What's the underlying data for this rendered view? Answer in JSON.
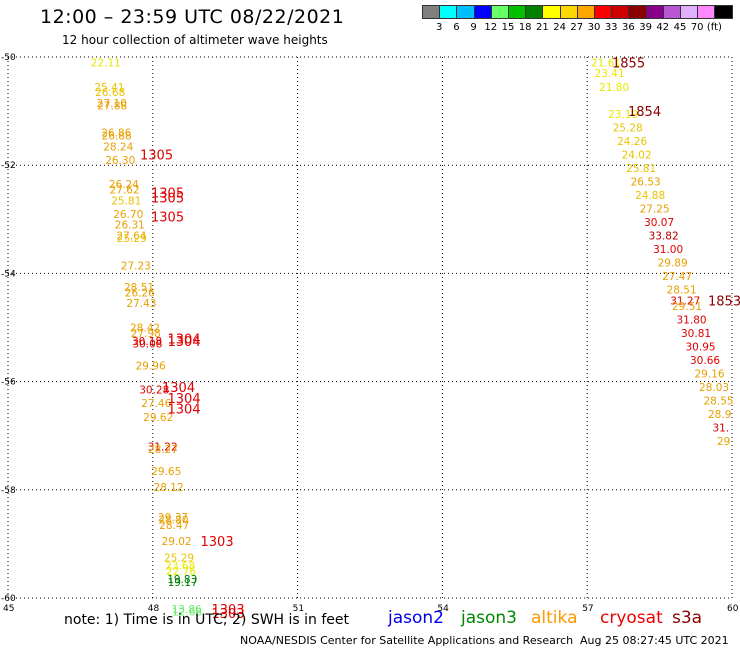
{
  "header": {
    "title": "12:00 – 23:59 UTC 08/22/2021",
    "subtitle": "12 hour collection of altimeter wave heights"
  },
  "colorbar": {
    "colors": [
      "#808080",
      "#00ffff",
      "#00bfff",
      "#0000ff",
      "#66ff66",
      "#00c000",
      "#008000",
      "#ffff00",
      "#ffd700",
      "#ffa500",
      "#ff0000",
      "#cc0000",
      "#8b0000",
      "#8b008b",
      "#ba55d3",
      "#e0b0ff",
      "#ff88ff",
      "#000000"
    ],
    "labels": [
      "3",
      "6",
      "9",
      "12",
      "15",
      "18",
      "21",
      "24",
      "27",
      "30",
      "33",
      "36",
      "39",
      "42",
      "45",
      "70",
      "(ft)"
    ]
  },
  "axes": {
    "y_ticks": [
      "-50",
      "-52",
      "-54",
      "-56",
      "-58",
      "-60"
    ],
    "x_ticks": [
      "45",
      "48",
      "51",
      "54",
      "57",
      "60"
    ]
  },
  "chart_data": {
    "type": "scatter",
    "xlim": [
      45,
      60
    ],
    "ylim": [
      -60,
      -50
    ],
    "grid": true,
    "annotations": [
      {
        "x": 48.0,
        "y": -50.1,
        "text": "22.11",
        "color": "#e8e800"
      },
      {
        "x": 48.0,
        "y": -50.55,
        "text": "25.41",
        "color": "#e8c400"
      },
      {
        "x": 48.0,
        "y": -50.65,
        "text": "26.68",
        "color": "#e8c400"
      },
      {
        "x": 48.0,
        "y": -50.85,
        "text": "27.10",
        "color": "#e8a000"
      },
      {
        "x": 48.0,
        "y": -50.9,
        "text": "27.88",
        "color": "#e8a000"
      },
      {
        "x": 48.0,
        "y": -51.4,
        "text": "26.86",
        "color": "#e8a000"
      },
      {
        "x": 48.0,
        "y": -51.45,
        "text": "26.88",
        "color": "#e8a000"
      },
      {
        "x": 48.0,
        "y": -51.65,
        "text": "28.24",
        "color": "#e8a000"
      },
      {
        "x": 48.0,
        "y": -51.9,
        "text": "26.30",
        "color": "#e8a000"
      },
      {
        "x": 48.0,
        "y": -52.35,
        "text": "26.24",
        "color": "#e8a000"
      },
      {
        "x": 48.0,
        "y": -52.45,
        "text": "27.62",
        "color": "#e8a000"
      },
      {
        "x": 48.0,
        "y": -52.65,
        "text": "25.81",
        "color": "#e8c400"
      },
      {
        "x": 48.0,
        "y": -52.9,
        "text": "26.70",
        "color": "#e8a000"
      },
      {
        "x": 48.0,
        "y": -53.1,
        "text": "26.31",
        "color": "#e8a000"
      },
      {
        "x": 48.0,
        "y": -53.3,
        "text": "27.64",
        "color": "#e8a000"
      },
      {
        "x": 48.0,
        "y": -53.35,
        "text": "25.29",
        "color": "#e8c400"
      },
      {
        "x": 48.0,
        "y": -53.85,
        "text": "27.23",
        "color": "#e8a000"
      },
      {
        "x": 48.0,
        "y": -54.25,
        "text": "28.51",
        "color": "#e8a000"
      },
      {
        "x": 48.0,
        "y": -54.35,
        "text": "26.26",
        "color": "#e8a000"
      },
      {
        "x": 48.0,
        "y": -54.55,
        "text": "27.43",
        "color": "#e8a000"
      },
      {
        "x": 48.0,
        "y": -55.0,
        "text": "28.42",
        "color": "#e8a000"
      },
      {
        "x": 48.0,
        "y": -55.1,
        "text": "27.98",
        "color": "#e8a000"
      },
      {
        "x": 48.0,
        "y": -55.25,
        "text": "30.18",
        "color": "#e00000"
      },
      {
        "x": 48.0,
        "y": -55.3,
        "text": "30.08",
        "color": "#e00000"
      },
      {
        "x": 48.0,
        "y": -55.7,
        "text": "29.96",
        "color": "#e8a000"
      },
      {
        "x": 48.0,
        "y": -56.15,
        "text": "30.28",
        "color": "#e00000"
      },
      {
        "x": 48.0,
        "y": -56.4,
        "text": "27.46",
        "color": "#e8a000"
      },
      {
        "x": 48.0,
        "y": -56.65,
        "text": "29.62",
        "color": "#e8a000"
      },
      {
        "x": 48.0,
        "y": -57.2,
        "text": "31.22",
        "color": "#e00000"
      },
      {
        "x": 48.0,
        "y": -57.25,
        "text": "28.27",
        "color": "#e8a000"
      },
      {
        "x": 48.0,
        "y": -57.65,
        "text": "29.65",
        "color": "#e8a000"
      },
      {
        "x": 48.0,
        "y": -57.95,
        "text": "28.12",
        "color": "#e8a000"
      },
      {
        "x": 48.0,
        "y": -58.5,
        "text": "29.37",
        "color": "#e8a000"
      },
      {
        "x": 48.0,
        "y": -58.55,
        "text": "28.80",
        "color": "#e8a000"
      },
      {
        "x": 48.0,
        "y": -58.65,
        "text": "28.47",
        "color": "#e8a000"
      },
      {
        "x": 48.0,
        "y": -58.95,
        "text": "29.02",
        "color": "#e8a000"
      },
      {
        "x": 48.0,
        "y": -59.25,
        "text": "25.29",
        "color": "#e8c400"
      },
      {
        "x": 48.0,
        "y": -59.4,
        "text": "23.68",
        "color": "#e8e800"
      },
      {
        "x": 48.0,
        "y": -59.5,
        "text": "22.76",
        "color": "#e8e800"
      },
      {
        "x": 48.0,
        "y": -59.65,
        "text": "19.83",
        "color": "#008000"
      },
      {
        "x": 48.0,
        "y": -59.7,
        "text": "19.17",
        "color": "#008000"
      },
      {
        "x": 48.0,
        "y": -60.2,
        "text": "13.86",
        "color": "#66ee66"
      },
      {
        "x": 48.0,
        "y": -60.25,
        "text": "12.68",
        "color": "#66ee66"
      },
      {
        "x": 57.0,
        "y": -50.1,
        "text": "21.61",
        "color": "#e8e800"
      },
      {
        "x": 57.0,
        "y": -50.3,
        "text": "23.41",
        "color": "#e8e800"
      },
      {
        "x": 57.0,
        "y": -50.55,
        "text": "21.80",
        "color": "#e8e800"
      },
      {
        "x": 57.0,
        "y": -51.05,
        "text": "23.19",
        "color": "#e8e800"
      },
      {
        "x": 57.0,
        "y": -51.3,
        "text": "25.28",
        "color": "#e8c400"
      },
      {
        "x": 57.0,
        "y": -51.55,
        "text": "24.26",
        "color": "#e8c400"
      },
      {
        "x": 57.0,
        "y": -51.8,
        "text": "24.02",
        "color": "#e8c400"
      },
      {
        "x": 57.0,
        "y": -52.05,
        "text": "25.81",
        "color": "#e8c400"
      },
      {
        "x": 57.0,
        "y": -52.3,
        "text": "26.53",
        "color": "#e8a000"
      },
      {
        "x": 57.0,
        "y": -52.55,
        "text": "24.88",
        "color": "#e8c400"
      },
      {
        "x": 57.0,
        "y": -52.8,
        "text": "27.25",
        "color": "#e8a000"
      },
      {
        "x": 57.0,
        "y": -53.05,
        "text": "30.07",
        "color": "#e00000"
      },
      {
        "x": 57.0,
        "y": -53.3,
        "text": "33.82",
        "color": "#b00000"
      },
      {
        "x": 57.0,
        "y": -53.55,
        "text": "31.00",
        "color": "#e00000"
      },
      {
        "x": 57.0,
        "y": -53.8,
        "text": "29.89",
        "color": "#e8a000"
      },
      {
        "x": 57.0,
        "y": -54.05,
        "text": "27.47",
        "color": "#e8a000"
      },
      {
        "x": 57.0,
        "y": -54.3,
        "text": "28.51",
        "color": "#e8a000"
      },
      {
        "x": 57.0,
        "y": -54.5,
        "text": "31.27",
        "color": "#e00000"
      },
      {
        "x": 57.0,
        "y": -54.6,
        "text": "29.51",
        "color": "#e8a000"
      },
      {
        "x": 57.0,
        "y": -54.85,
        "text": "31.80",
        "color": "#e00000"
      },
      {
        "x": 57.0,
        "y": -55.1,
        "text": "30.81",
        "color": "#e00000"
      },
      {
        "x": 57.0,
        "y": -55.35,
        "text": "30.95",
        "color": "#e00000"
      },
      {
        "x": 57.0,
        "y": -55.6,
        "text": "30.66",
        "color": "#e00000"
      },
      {
        "x": 57.0,
        "y": -55.85,
        "text": "29.16",
        "color": "#e8a000"
      },
      {
        "x": 57.0,
        "y": -56.1,
        "text": "28.03",
        "color": "#e8a000"
      },
      {
        "x": 57.0,
        "y": -56.35,
        "text": "28.55",
        "color": "#e8a000"
      },
      {
        "x": 57.0,
        "y": -56.6,
        "text": "28.9",
        "color": "#e8a000"
      },
      {
        "x": 57.0,
        "y": -56.85,
        "text": "31.",
        "color": "#e00000"
      },
      {
        "x": 57.0,
        "y": -57.1,
        "text": "29",
        "color": "#e8a000"
      }
    ],
    "time_labels": [
      {
        "text": "1855",
        "color": "#8b0000"
      },
      {
        "text": "1854",
        "color": "#8b0000"
      },
      {
        "text": "1853",
        "color": "#8b0000"
      },
      {
        "text": "1305",
        "color": "#e00000"
      },
      {
        "text": "1305",
        "color": "#e00000"
      },
      {
        "text": "1305",
        "color": "#e00000"
      },
      {
        "text": "1305",
        "color": "#e00000"
      },
      {
        "text": "1304",
        "color": "#e00000"
      },
      {
        "text": "1304",
        "color": "#e00000"
      },
      {
        "text": "1304",
        "color": "#e00000"
      },
      {
        "text": "1304",
        "color": "#e00000"
      },
      {
        "text": "1304",
        "color": "#e00000"
      },
      {
        "text": "1303",
        "color": "#e00000"
      },
      {
        "text": "1303",
        "color": "#e00000"
      },
      {
        "text": "1303",
        "color": "#e00000"
      }
    ]
  },
  "footer": {
    "note": "note: 1) Time is in UTC; 2) SWH is in feet",
    "legend": [
      {
        "name": "jason2",
        "color": "#0000ee"
      },
      {
        "name": "jason3",
        "color": "#008800"
      },
      {
        "name": "altika",
        "color": "#ff9900"
      },
      {
        "name": "cryosat",
        "color": "#ee0000"
      },
      {
        "name": "s3a",
        "color": "#8b0000"
      }
    ],
    "credit": "NOAA/NESDIS Center for Satellite Applications and Research",
    "timestamp": "Aug 25 08:27:45 UTC 2021"
  }
}
